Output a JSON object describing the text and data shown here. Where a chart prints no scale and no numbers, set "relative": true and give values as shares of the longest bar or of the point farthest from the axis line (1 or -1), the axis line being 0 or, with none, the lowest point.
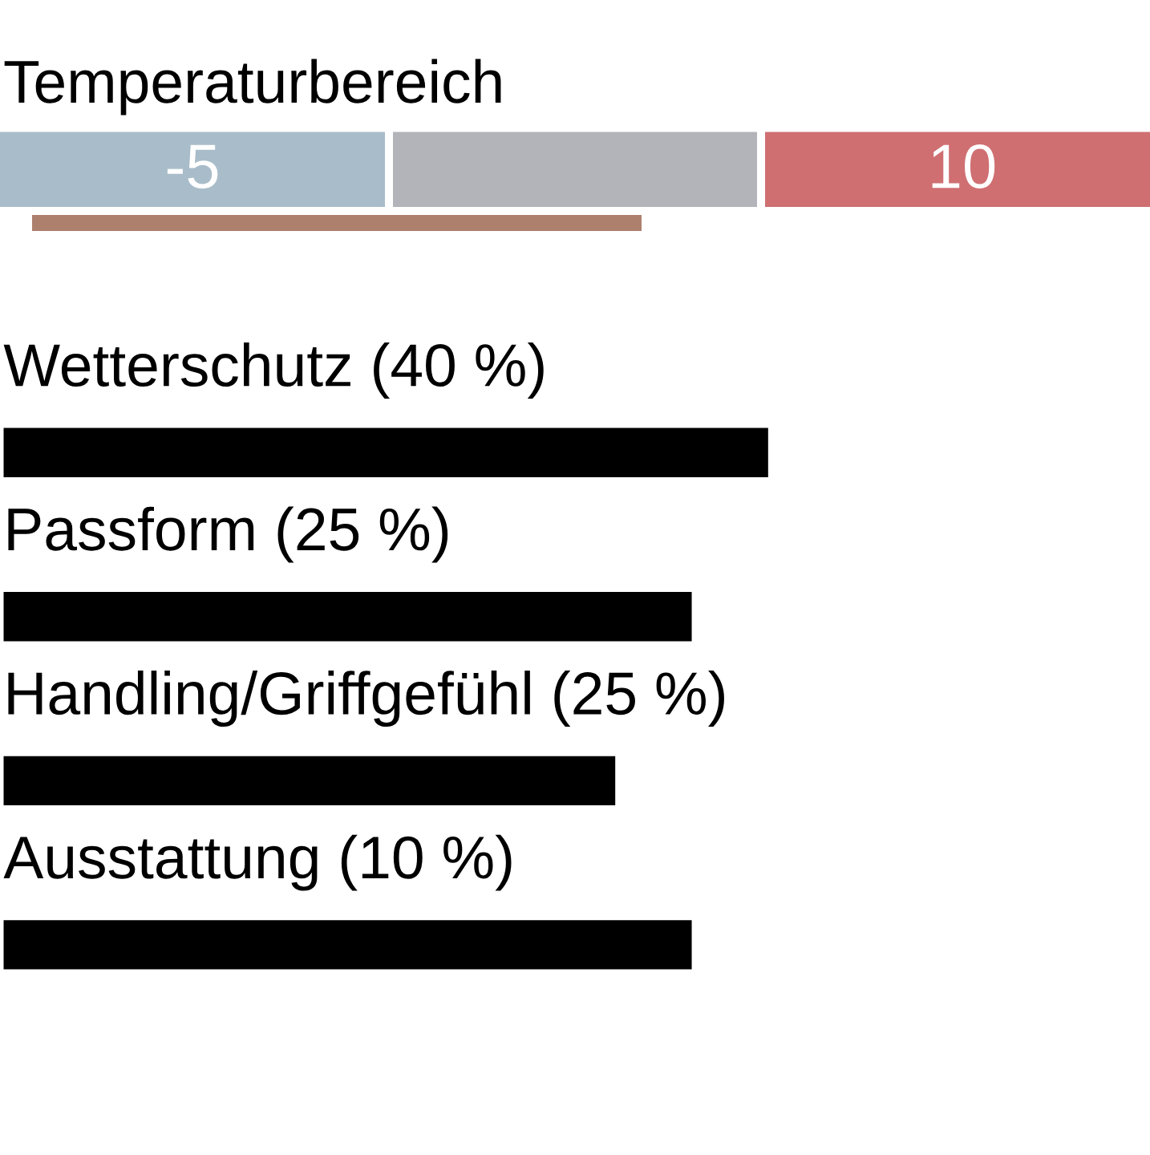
{
  "chart_data": [
    {
      "type": "other",
      "title": "Temperaturbereich",
      "annotations": [
        "-5",
        "10"
      ]
    },
    {
      "type": "bar",
      "orientation": "horizontal",
      "relative": true,
      "categories": [
        "Wetterschutz (40 %)",
        "Passform (25 %)",
        "Handling/Griffgefühl (25 %)",
        "Ausstattung (10 %)"
      ],
      "values": [
        1,
        0.9,
        0.8,
        0.9
      ],
      "color": "#000000"
    }
  ]
}
